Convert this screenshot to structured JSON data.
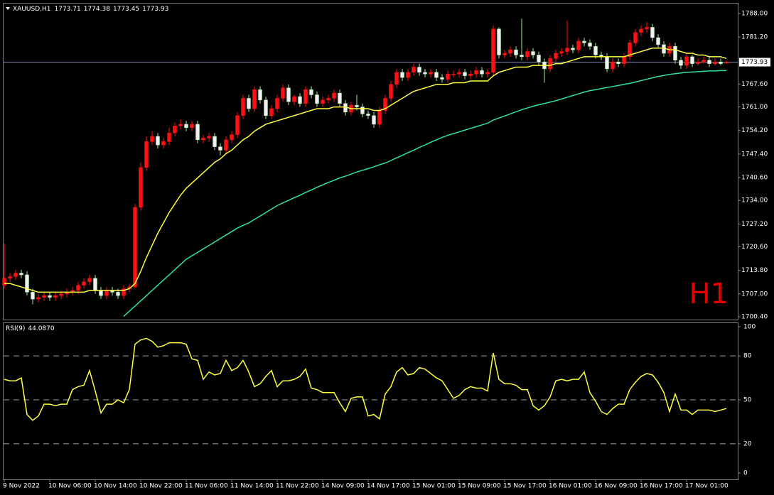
{
  "chart_data": {
    "type": "candlestick",
    "title": "XAUUSD,H1",
    "timeframe_label": "H1",
    "bull_color": "#ff1010",
    "bear_color": "#f0f0f0",
    "bear_wick_color": "#a8e8a0",
    "categories": [
      "9 Nov 2022",
      null,
      null,
      null,
      null,
      null,
      null,
      null,
      "10 Nov 06:00",
      null,
      null,
      null,
      null,
      null,
      null,
      null,
      "10 Nov 14:00",
      null,
      null,
      null,
      null,
      null,
      null,
      null,
      "10 Nov 22:00",
      null,
      null,
      null,
      null,
      null,
      null,
      null,
      "11 Nov 06:00",
      null,
      null,
      null,
      null,
      null,
      null,
      null,
      "11 Nov 14:00",
      null,
      null,
      null,
      null,
      null,
      null,
      null,
      "11 Nov 22:00",
      null,
      null,
      null,
      null,
      null,
      null,
      null,
      "14 Nov 09:00",
      null,
      null,
      null,
      null,
      null,
      null,
      null,
      "14 Nov 17:00",
      null,
      null,
      null,
      null,
      null,
      null,
      null,
      "15 Nov 01:00",
      null,
      null,
      null,
      null,
      null,
      null,
      null,
      "15 Nov 09:00",
      null,
      null,
      null,
      null,
      null,
      null,
      null,
      "15 Nov 17:00",
      null,
      null,
      null,
      null,
      null,
      null,
      null,
      "16 Nov 01:00",
      null,
      null,
      null,
      null,
      null,
      null,
      null,
      "16 Nov 09:00",
      null,
      null,
      null,
      null,
      null,
      null,
      null,
      "16 Nov 17:00",
      null,
      null,
      null,
      null,
      null,
      null,
      null,
      "17 Nov 01:00",
      null,
      null,
      null,
      null,
      null,
      null,
      null
    ],
    "open": [
      1709.5,
      1711.5,
      1712.0,
      1713.0,
      1712.5,
      1707.5,
      1705.5,
      1706.0,
      1706.5,
      1706.0,
      1706.5,
      1707.0,
      1707.5,
      1708.0,
      1709.5,
      1710.5,
      1711.5,
      1708.0,
      1706.5,
      1708.0,
      1707.5,
      1706.5,
      1708.5,
      1709.0,
      1732.0,
      1743.5,
      1751.0,
      1752.5,
      1750.0,
      1751.0,
      1753.5,
      1755.5,
      1756.0,
      1755.0,
      1756.0,
      1751.5,
      1752.0,
      1752.5,
      1749.5,
      1748.5,
      1751.5,
      1753.0,
      1758.5,
      1763.5,
      1760.5,
      1766.0,
      1763.0,
      1758.5,
      1760.5,
      1763.5,
      1766.5,
      1762.5,
      1764.0,
      1762.0,
      1766.0,
      1764.5,
      1762.0,
      1763.0,
      1763.5,
      1765.0,
      1762.0,
      1759.5,
      1761.5,
      1761.0,
      1759.0,
      1758.5,
      1756.0,
      1760.0,
      1763.5,
      1767.5,
      1771.0,
      1769.5,
      1771.0,
      1772.5,
      1771.0,
      1770.5,
      1771.0,
      1769.5,
      1769.0,
      1770.5,
      1770.5,
      1771.0,
      1770.0,
      1770.5,
      1771.5,
      1770.5,
      1771.0,
      1783.5,
      1776.0,
      1776.5,
      1777.5,
      1776.0,
      1775.5,
      1777.0,
      1776.0,
      1774.0,
      1772.0,
      1775.0,
      1776.5,
      1777.0,
      1778.0,
      1777.5,
      1780.0,
      1779.5,
      1778.5,
      1776.0,
      1775.5,
      1772.0,
      1774.0,
      1773.5,
      1775.5,
      1779.5,
      1782.5,
      1783.5,
      1784.0,
      1781.0,
      1779.0,
      1776.5,
      1778.5,
      1774.5,
      1773.0,
      1775.5,
      1773.5,
      1774.0,
      1774.5,
      1773.5,
      1774.0,
      1773.71
    ],
    "high": [
      1721.5,
      1713.0,
      1714.0,
      1714.0,
      1713.5,
      1708.5,
      1707.0,
      1707.5,
      1707.5,
      1707.5,
      1708.0,
      1708.5,
      1709.0,
      1710.5,
      1711.5,
      1712.5,
      1712.5,
      1709.0,
      1709.0,
      1709.0,
      1708.5,
      1709.5,
      1710.0,
      1733.0,
      1745.0,
      1752.5,
      1754.0,
      1753.5,
      1752.0,
      1755.0,
      1756.5,
      1757.5,
      1757.0,
      1757.0,
      1757.0,
      1753.0,
      1753.5,
      1753.5,
      1750.5,
      1752.5,
      1754.0,
      1759.5,
      1764.5,
      1764.5,
      1767.0,
      1767.0,
      1764.0,
      1761.5,
      1764.5,
      1767.5,
      1767.5,
      1764.5,
      1765.0,
      1767.0,
      1767.0,
      1765.5,
      1764.0,
      1764.5,
      1766.0,
      1766.0,
      1763.0,
      1762.5,
      1764.5,
      1762.0,
      1760.0,
      1759.5,
      1761.0,
      1764.5,
      1768.5,
      1772.0,
      1772.0,
      1772.0,
      1773.5,
      1773.5,
      1772.0,
      1772.0,
      1772.0,
      1770.5,
      1771.5,
      1771.5,
      1772.0,
      1772.0,
      1771.5,
      1772.5,
      1772.5,
      1772.0,
      1784.5,
      1784.0,
      1777.5,
      1778.5,
      1778.5,
      1786.5,
      1778.0,
      1778.0,
      1777.0,
      1775.0,
      1776.0,
      1777.5,
      1778.0,
      1786.0,
      1779.0,
      1781.0,
      1781.0,
      1780.5,
      1779.5,
      1777.0,
      1776.5,
      1775.0,
      1775.0,
      1776.5,
      1780.5,
      1783.5,
      1784.5,
      1785.5,
      1785.0,
      1782.0,
      1780.0,
      1779.5,
      1779.5,
      1775.5,
      1776.5,
      1776.0,
      1775.0,
      1775.5,
      1775.5,
      1775.0,
      1775.0,
      1774.38
    ],
    "low": [
      1708.5,
      1710.5,
      1711.0,
      1711.5,
      1706.5,
      1704.0,
      1704.5,
      1705.0,
      1705.0,
      1705.0,
      1705.5,
      1706.0,
      1706.5,
      1707.0,
      1708.5,
      1709.5,
      1707.0,
      1705.5,
      1705.5,
      1706.5,
      1705.5,
      1705.5,
      1707.5,
      1708.5,
      1731.0,
      1742.5,
      1750.0,
      1749.0,
      1749.0,
      1750.0,
      1752.5,
      1754.5,
      1754.0,
      1754.0,
      1750.5,
      1750.5,
      1751.0,
      1748.5,
      1747.0,
      1747.5,
      1750.5,
      1752.0,
      1757.5,
      1759.5,
      1759.5,
      1762.0,
      1757.5,
      1757.5,
      1759.5,
      1762.5,
      1761.5,
      1761.5,
      1761.0,
      1761.0,
      1763.5,
      1761.0,
      1761.0,
      1762.0,
      1762.5,
      1761.0,
      1758.5,
      1758.5,
      1760.0,
      1758.0,
      1757.5,
      1755.0,
      1755.0,
      1759.0,
      1762.5,
      1766.5,
      1768.5,
      1768.5,
      1770.0,
      1770.0,
      1769.5,
      1769.5,
      1768.5,
      1768.0,
      1768.0,
      1769.5,
      1769.5,
      1769.0,
      1769.0,
      1769.5,
      1769.5,
      1769.5,
      1770.0,
      1775.0,
      1775.0,
      1775.5,
      1775.0,
      1774.5,
      1774.5,
      1775.0,
      1773.0,
      1768.0,
      1771.0,
      1774.0,
      1775.5,
      1776.0,
      1776.5,
      1776.5,
      1778.5,
      1777.5,
      1775.0,
      1774.5,
      1771.0,
      1771.0,
      1772.5,
      1772.5,
      1774.5,
      1778.5,
      1781.5,
      1782.5,
      1780.0,
      1778.0,
      1775.5,
      1775.5,
      1773.5,
      1772.0,
      1772.0,
      1772.5,
      1773.0,
      1773.5,
      1772.5,
      1773.0,
      1773.0,
      1773.45
    ],
    "close": [
      1711.5,
      1712.0,
      1713.0,
      1712.5,
      1707.5,
      1705.5,
      1706.0,
      1706.5,
      1706.0,
      1706.5,
      1707.0,
      1707.5,
      1708.0,
      1709.5,
      1710.5,
      1711.5,
      1708.0,
      1706.5,
      1708.0,
      1707.5,
      1706.5,
      1708.5,
      1709.0,
      1732.0,
      1743.5,
      1751.0,
      1752.5,
      1750.0,
      1751.0,
      1753.5,
      1755.5,
      1756.0,
      1755.0,
      1756.0,
      1751.5,
      1752.0,
      1752.5,
      1749.5,
      1748.5,
      1751.5,
      1753.0,
      1758.5,
      1763.5,
      1760.5,
      1766.0,
      1763.0,
      1758.5,
      1760.5,
      1763.5,
      1766.5,
      1762.5,
      1764.0,
      1762.0,
      1766.0,
      1764.5,
      1762.0,
      1763.0,
      1763.5,
      1765.0,
      1762.0,
      1759.5,
      1761.5,
      1761.0,
      1759.0,
      1758.5,
      1756.0,
      1760.0,
      1763.5,
      1767.5,
      1771.0,
      1769.5,
      1771.0,
      1772.5,
      1771.0,
      1770.5,
      1771.0,
      1769.5,
      1769.0,
      1770.5,
      1770.5,
      1771.0,
      1770.0,
      1770.5,
      1771.5,
      1770.5,
      1771.0,
      1783.5,
      1776.0,
      1776.5,
      1777.5,
      1776.0,
      1775.5,
      1777.0,
      1776.0,
      1774.0,
      1772.0,
      1775.0,
      1776.5,
      1777.0,
      1778.0,
      1777.5,
      1780.0,
      1779.5,
      1778.5,
      1776.0,
      1775.5,
      1772.0,
      1774.0,
      1773.5,
      1775.5,
      1779.5,
      1782.5,
      1783.5,
      1784.0,
      1781.0,
      1779.0,
      1776.5,
      1778.5,
      1774.5,
      1773.0,
      1775.5,
      1773.5,
      1774.0,
      1774.5,
      1773.5,
      1774.0,
      1773.5,
      1773.93
    ],
    "moving_averages": [
      {
        "color": "#ffff40",
        "values": [
          1710.0,
          1710.0,
          1709.5,
          1709.0,
          1708.5,
          1708.0,
          1707.5,
          1707.5,
          1707.5,
          1707.5,
          1707.5,
          1707.5,
          1707.5,
          1707.5,
          1707.5,
          1708.0,
          1708.0,
          1708.0,
          1708.0,
          1708.0,
          1708.0,
          1708.0,
          1708.5,
          1710.0,
          1713.5,
          1717.5,
          1721.0,
          1724.5,
          1727.5,
          1730.5,
          1733.0,
          1735.5,
          1737.5,
          1739.0,
          1740.5,
          1742.0,
          1743.5,
          1745.0,
          1746.0,
          1747.5,
          1748.5,
          1750.0,
          1751.5,
          1752.5,
          1754.0,
          1755.0,
          1756.0,
          1756.5,
          1757.0,
          1757.5,
          1758.0,
          1758.5,
          1759.0,
          1759.5,
          1760.0,
          1760.5,
          1760.5,
          1760.5,
          1761.0,
          1761.0,
          1761.0,
          1760.5,
          1760.5,
          1760.5,
          1760.5,
          1760.0,
          1760.0,
          1760.5,
          1761.5,
          1762.5,
          1763.5,
          1764.5,
          1765.5,
          1766.0,
          1766.5,
          1767.0,
          1767.5,
          1767.5,
          1767.5,
          1768.0,
          1768.0,
          1768.0,
          1768.5,
          1768.5,
          1768.5,
          1768.5,
          1770.0,
          1771.0,
          1771.5,
          1772.0,
          1772.5,
          1772.5,
          1772.5,
          1773.0,
          1773.0,
          1773.0,
          1773.0,
          1773.5,
          1773.5,
          1774.0,
          1774.5,
          1775.0,
          1775.5,
          1775.5,
          1775.5,
          1775.5,
          1775.5,
          1775.5,
          1775.5,
          1775.5,
          1776.0,
          1776.5,
          1777.0,
          1777.5,
          1778.0,
          1778.0,
          1778.0,
          1777.5,
          1777.5,
          1777.0,
          1776.5,
          1776.5,
          1776.0,
          1776.0,
          1775.5,
          1775.5,
          1775.5,
          1775.0
        ]
      },
      {
        "color": "#30e0a0",
        "values": [
          null,
          null,
          null,
          null,
          null,
          null,
          null,
          null,
          null,
          null,
          null,
          null,
          null,
          null,
          null,
          null,
          null,
          null,
          null,
          null,
          null,
          1700.5,
          1702.0,
          1703.5,
          1705.0,
          1706.5,
          1708.0,
          1709.5,
          1711.0,
          1712.5,
          1714.0,
          1715.5,
          1717.0,
          1718.0,
          1719.0,
          1720.0,
          1721.0,
          1722.0,
          1723.0,
          1724.0,
          1725.0,
          1726.0,
          1726.8,
          1727.5,
          1728.5,
          1729.5,
          1730.5,
          1731.5,
          1732.5,
          1733.3,
          1734.0,
          1734.8,
          1735.5,
          1736.3,
          1737.0,
          1737.8,
          1738.5,
          1739.2,
          1739.8,
          1740.5,
          1741.0,
          1741.6,
          1742.2,
          1742.7,
          1743.2,
          1743.7,
          1744.3,
          1744.8,
          1745.5,
          1746.3,
          1747.0,
          1747.8,
          1748.5,
          1749.3,
          1750.0,
          1750.8,
          1751.5,
          1752.2,
          1752.8,
          1753.3,
          1753.8,
          1754.3,
          1754.8,
          1755.3,
          1755.8,
          1756.3,
          1757.2,
          1757.8,
          1758.4,
          1759.0,
          1759.6,
          1760.2,
          1760.7,
          1761.2,
          1761.6,
          1762.0,
          1762.4,
          1762.8,
          1763.3,
          1763.8,
          1764.3,
          1764.8,
          1765.3,
          1765.7,
          1766.0,
          1766.3,
          1766.6,
          1766.9,
          1767.2,
          1767.5,
          1767.8,
          1768.2,
          1768.6,
          1769.0,
          1769.4,
          1769.8,
          1770.1,
          1770.4,
          1770.6,
          1770.8,
          1771.0,
          1771.1,
          1771.2,
          1771.3,
          1771.4,
          1771.4,
          1771.5,
          1771.5
        ]
      }
    ],
    "current_price_line_color": "#8088a8",
    "ylim": [
      1699.58,
      1790.86
    ],
    "yticks": [
      {
        "value": 1788,
        "label": "1788.00"
      },
      {
        "value": 1781.2,
        "label": "1781.20"
      },
      {
        "value": 1767.6,
        "label": "1767.60"
      },
      {
        "value": 1761,
        "label": "1761.00"
      },
      {
        "value": 1754.2,
        "label": "1754.20"
      },
      {
        "value": 1747.4,
        "label": "1747.40"
      },
      {
        "value": 1740.6,
        "label": "1740.60"
      },
      {
        "value": 1734,
        "label": "1734.00"
      },
      {
        "value": 1727.2,
        "label": "1727.20"
      },
      {
        "value": 1720.6,
        "label": "1720.60"
      },
      {
        "value": 1713.8,
        "label": "1713.80"
      },
      {
        "value": 1707,
        "label": "1707.00"
      },
      {
        "value": 1700.4,
        "label": "1700.40"
      }
    ],
    "rsi": {
      "title": "RSI(9)",
      "current_value_label": "44.0870",
      "color": "#ffff40",
      "values": [
        64,
        63,
        63,
        65,
        40,
        36,
        39,
        47,
        47,
        46,
        47,
        47,
        57,
        59,
        60,
        70,
        56,
        41,
        47,
        47,
        50,
        48,
        57,
        88,
        91,
        92,
        90,
        86,
        87,
        89,
        89,
        89,
        88,
        78,
        77,
        64,
        69,
        67,
        68,
        77,
        70,
        72,
        77,
        69,
        59,
        61,
        66,
        70,
        59,
        63,
        63,
        64,
        66,
        71,
        58,
        57,
        55,
        55,
        55,
        48,
        42,
        51,
        52,
        52,
        39,
        40,
        37,
        54,
        59,
        69,
        72,
        67,
        68,
        72,
        71,
        68,
        65,
        63,
        57,
        51,
        53,
        57,
        59,
        58,
        58,
        56,
        82,
        64,
        61,
        61,
        60,
        57,
        57,
        46,
        43,
        46,
        52,
        63,
        64,
        63,
        64,
        64,
        69,
        55,
        49,
        42,
        40,
        44,
        47,
        47,
        57,
        62,
        66,
        68,
        67,
        62,
        55,
        42,
        54,
        43,
        43,
        40,
        43,
        43,
        43,
        42,
        43,
        44.087
      ],
      "ylim": [
        -4.35,
        102.41
      ],
      "yticks": [
        100,
        80,
        50,
        20,
        0
      ]
    }
  }
}
